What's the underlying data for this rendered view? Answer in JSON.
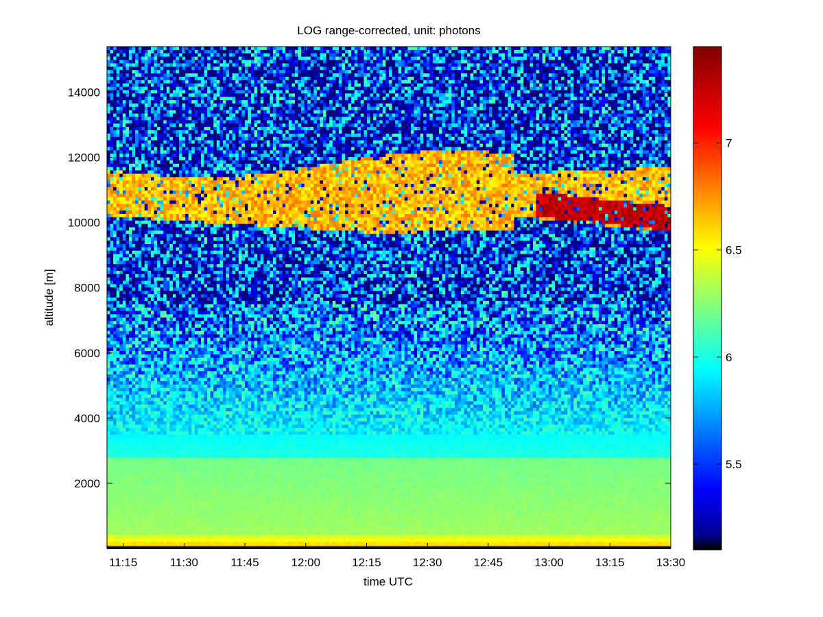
{
  "chart_data": {
    "type": "heatmap",
    "title": "LOG range-corrected, unit: photons",
    "xlabel": "time UTC",
    "ylabel": "altitude [m]",
    "x_range": [
      "11:11",
      "13:30"
    ],
    "x_ticks": [
      "11:15",
      "11:30",
      "11:45",
      "12:00",
      "12:15",
      "12:30",
      "12:45",
      "13:00",
      "13:15",
      "13:30"
    ],
    "y_range": [
      0,
      15400
    ],
    "y_ticks": [
      2000,
      4000,
      6000,
      8000,
      10000,
      12000,
      14000
    ],
    "colorbar": {
      "colormap": "jet",
      "range": [
        5.1,
        7.45
      ],
      "ticks": [
        5.5,
        6,
        6.5,
        7
      ]
    },
    "layers": [
      {
        "feature": "surface layer",
        "altitude_m": [
          0,
          400
        ],
        "value": 6.75
      },
      {
        "feature": "boundary layer",
        "altitude_m": [
          400,
          2800
        ],
        "value": 6.3
      },
      {
        "feature": "free troposphere",
        "altitude_m": [
          2800,
          7500
        ],
        "value": 5.85
      },
      {
        "feature": "noisy upper troposphere",
        "altitude_m": [
          7500,
          15400
        ],
        "value": 5.4
      },
      {
        "feature": "cirrus cloud",
        "altitude_m": [
          9700,
          12200
        ],
        "value": 6.8
      },
      {
        "feature": "cirrus core (13:00-13:30)",
        "altitude_m": [
          9600,
          10500
        ],
        "value": 7.3
      }
    ]
  }
}
